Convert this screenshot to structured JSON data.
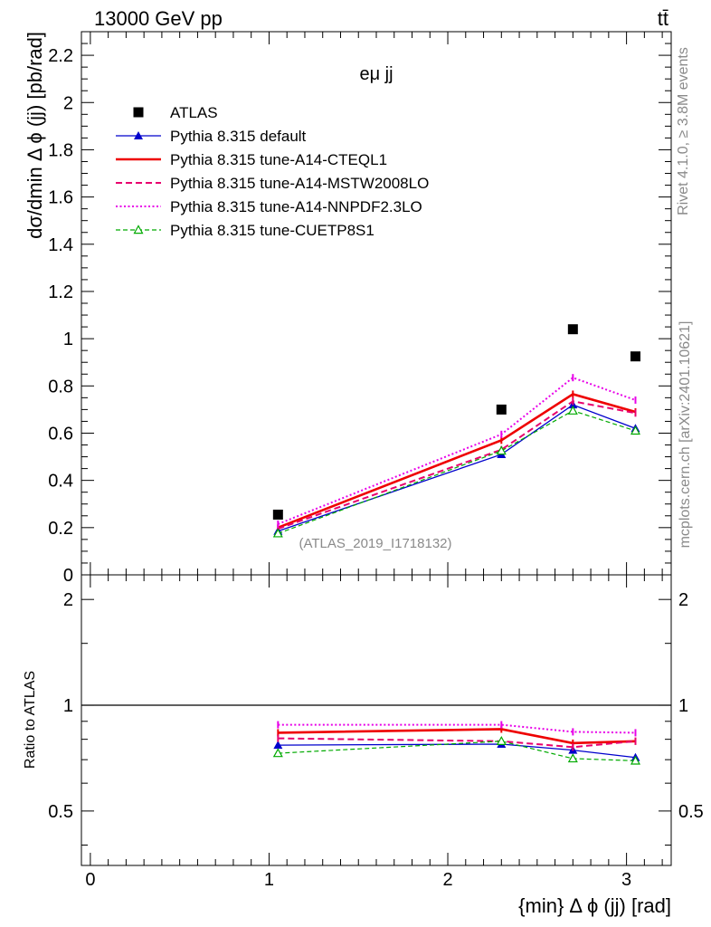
{
  "header": {
    "left_label": "13000 GeV pp",
    "right_label": "tt̄"
  },
  "side_labels": {
    "rivet": "Rivet 4.1.0, ≥ 3.8M events",
    "mcplots": "mcplots.cern.ch [arXiv:2401.10621]"
  },
  "analysis_tag": "(ATLAS_2019_I1718132)",
  "chart_data": [
    {
      "type": "scatter",
      "title": "eμ jj",
      "xlabel": "{min} Δ ϕ (jj) [rad]",
      "ylabel": "dσ/dmin Δ ϕ (jj) [pb/rad]",
      "xlim": [
        -0.05,
        3.25
      ],
      "ylim": [
        0,
        2.3
      ],
      "xticks": [
        0,
        1,
        2,
        3
      ],
      "yticks": [
        0,
        0.2,
        0.4,
        0.6,
        0.8,
        1,
        1.2,
        1.4,
        1.6,
        1.8,
        2,
        2.2
      ],
      "ytick_labels": [
        "0",
        "0.2",
        "0.4",
        "0.6",
        "0.8",
        "1",
        "1.2",
        "1.4",
        "1.6",
        "1.8",
        "2",
        "2.2"
      ],
      "x": [
        1.05,
        2.3,
        2.7,
        3.05
      ],
      "legend": "top-left",
      "series": [
        {
          "name": "ATLAS",
          "values": [
            0.255,
            0.7,
            1.04,
            0.925
          ],
          "color": "#000000",
          "style": "marker-square"
        },
        {
          "name": "Pythia 8.315 default",
          "values": [
            0.185,
            0.51,
            0.72,
            0.62
          ],
          "color": "#0000cc",
          "style": "solid-thin-triangle"
        },
        {
          "name": "Pythia 8.315 tune-A14-CTEQL1",
          "values": [
            0.2,
            0.57,
            0.765,
            0.69
          ],
          "color": "#ee0000",
          "style": "solid-thick"
        },
        {
          "name": "Pythia 8.315 tune-A14-MSTW2008LO",
          "values": [
            0.195,
            0.53,
            0.735,
            0.685
          ],
          "color": "#e8006e",
          "style": "dashed"
        },
        {
          "name": "Pythia 8.315 tune-A14-NNPDF2.3LO",
          "values": [
            0.215,
            0.595,
            0.835,
            0.74
          ],
          "color": "#e800e8",
          "style": "dotted"
        },
        {
          "name": "Pythia 8.315 tune-CUETP8S1",
          "values": [
            0.175,
            0.525,
            0.695,
            0.61
          ],
          "color": "#00aa00",
          "style": "dashed-open-triangle"
        }
      ]
    },
    {
      "type": "line",
      "title": "",
      "xlabel": "{min} Δ ϕ (jj) [rad]",
      "ylabel": "Ratio to ATLAS",
      "scale": "log",
      "xlim": [
        -0.05,
        3.25
      ],
      "ylim": [
        0.35,
        2.35
      ],
      "xticks": [
        0,
        1,
        2,
        3
      ],
      "xtick_labels": [
        "0",
        "1",
        "2",
        "3"
      ],
      "yticks": [
        0.5,
        1,
        2
      ],
      "ytick_labels": [
        "0.5",
        "1",
        "2"
      ],
      "reference_line": 1,
      "x": [
        1.05,
        2.3,
        2.7,
        3.05
      ],
      "series": [
        {
          "name": "Pythia 8.315 default",
          "values": [
            0.77,
            0.775,
            0.745,
            0.71
          ]
        },
        {
          "name": "Pythia 8.315 tune-A14-CTEQL1",
          "values": [
            0.835,
            0.855,
            0.78,
            0.79
          ]
        },
        {
          "name": "Pythia 8.315 tune-A14-MSTW2008LO",
          "values": [
            0.805,
            0.79,
            0.76,
            0.79
          ]
        },
        {
          "name": "Pythia 8.315 tune-A14-NNPDF2.3LO",
          "values": [
            0.88,
            0.88,
            0.84,
            0.835
          ]
        },
        {
          "name": "Pythia 8.315 tune-CUETP8S1",
          "values": [
            0.73,
            0.79,
            0.705,
            0.695
          ]
        }
      ]
    }
  ]
}
